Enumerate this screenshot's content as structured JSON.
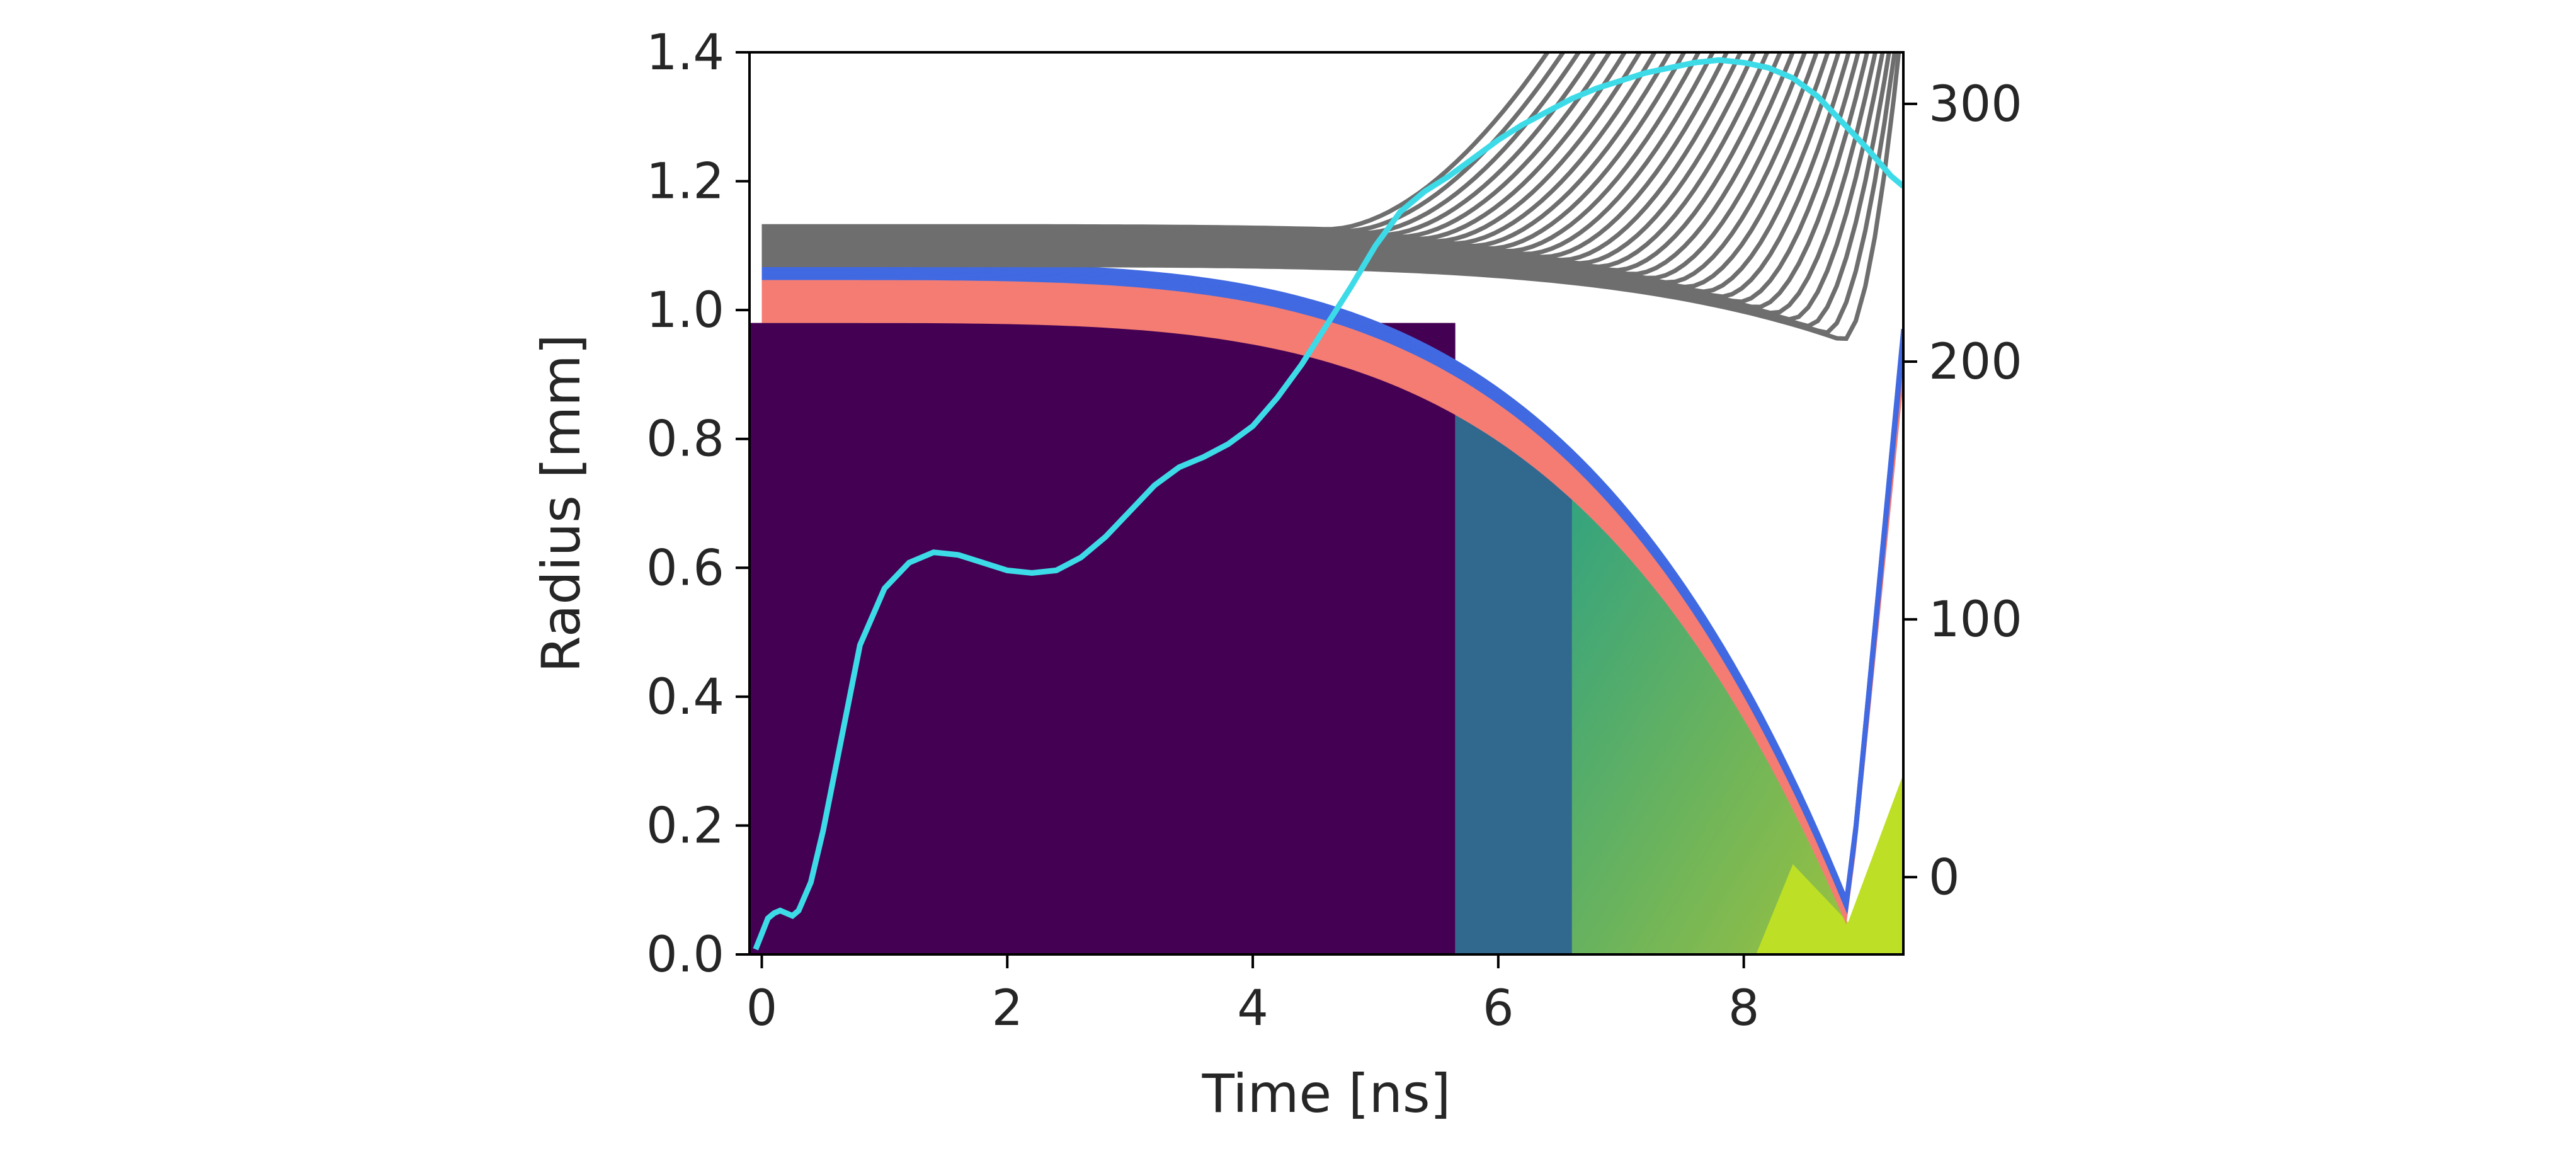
{
  "chart_data": {
    "type": "line",
    "title": "",
    "xlabel": "Time [ns]",
    "ylabel": "Radius [mm]",
    "y2label": "",
    "xlim": [
      -0.1,
      9.3
    ],
    "ylim": [
      0,
      1.4
    ],
    "y2lim": [
      -30,
      320
    ],
    "x_ticks": [
      0,
      2,
      4,
      6,
      8
    ],
    "y_ticks": [
      0.0,
      0.2,
      0.4,
      0.6,
      0.8,
      1.0,
      1.2,
      1.4
    ],
    "y_tick_labels": [
      "0.0",
      "0.2",
      "0.4",
      "0.6",
      "0.8",
      "1.0",
      "1.2",
      "1.4"
    ],
    "y2_ticks": [
      0,
      100,
      200,
      300
    ],
    "grid": false,
    "legend": "none",
    "colors": {
      "outer_shells": "#6e6e6e",
      "inner_shells": "#4169e1",
      "liner_band": "#f47c72",
      "inner_liner": "#da70d6",
      "current_curve": "#3ddbe8",
      "fuel_background": "#440154",
      "fuel_compressed": "#31688e",
      "fuel_hot": "#35b779",
      "fuel_stagnation": "#bddf26"
    },
    "mesh_lines": {
      "start_time": 0,
      "stagnation_time": 8.85,
      "end_time": 9.3,
      "outer_shell_count": 30,
      "outer_shell_r0_range": [
        1.07,
        1.13
      ],
      "inner_shell_count": 12,
      "inner_shell_r0_range": [
        1.05,
        1.07
      ],
      "liner_band_r0_range": [
        0.98,
        1.05
      ],
      "liner_min_radius": 0.04
    },
    "fuel_region": {
      "initial_radius": 0.98,
      "compression_start_time": 5.65
    },
    "series": [
      {
        "name": "",
        "axis": "right",
        "x": [
          -0.05,
          0.0,
          0.05,
          0.1,
          0.15,
          0.2,
          0.25,
          0.3,
          0.4,
          0.5,
          0.6,
          0.8,
          1.0,
          1.2,
          1.4,
          1.6,
          1.8,
          2.0,
          2.2,
          2.4,
          2.6,
          2.8,
          3.0,
          3.2,
          3.4,
          3.6,
          3.8,
          4.0,
          4.2,
          4.4,
          4.6,
          4.8,
          5.0,
          5.2,
          5.4,
          5.6,
          5.8,
          6.0,
          6.2,
          6.4,
          6.6,
          6.8,
          7.0,
          7.2,
          7.4,
          7.6,
          7.8,
          8.0,
          8.2,
          8.4,
          8.6,
          8.8,
          9.0,
          9.2,
          9.3
        ],
        "y": [
          -28,
          -22,
          -16,
          -14,
          -13,
          -14,
          -15,
          -13,
          -2,
          18,
          42,
          90,
          112,
          122,
          126,
          125,
          122,
          119,
          118,
          119,
          124,
          132,
          142,
          152,
          159,
          163,
          168,
          175,
          186,
          199,
          214,
          229,
          245,
          258,
          266,
          272,
          279,
          286,
          292,
          297,
          302,
          306,
          309,
          312,
          314,
          316,
          317,
          316,
          314,
          310,
          303,
          293,
          283,
          272,
          268
        ]
      }
    ]
  }
}
